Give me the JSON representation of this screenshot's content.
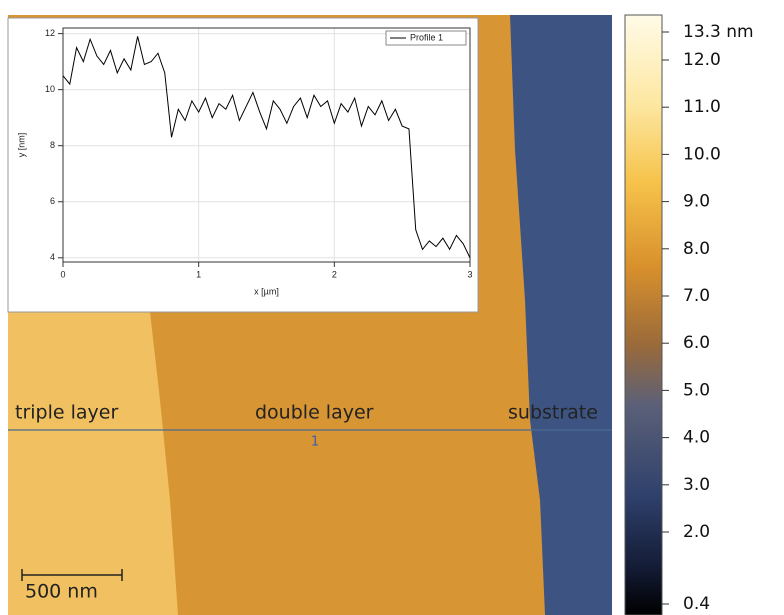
{
  "image": {
    "labels": [
      "triple layer",
      "double layer",
      "substrate"
    ],
    "profile_marker": "1",
    "scale_bar": "500 nm"
  },
  "colorbar": {
    "ticks": [
      {
        "value": 13.3,
        "label": "13.3 nm"
      },
      {
        "value": 12,
        "label": "12.0"
      },
      {
        "value": 11,
        "label": "11.0"
      },
      {
        "value": 10,
        "label": "10.0"
      },
      {
        "value": 9,
        "label": "9.0"
      },
      {
        "value": 8,
        "label": "8.0"
      },
      {
        "value": 7,
        "label": "7.0"
      },
      {
        "value": 6,
        "label": "6.0"
      },
      {
        "value": 5,
        "label": "5.0"
      },
      {
        "value": 4,
        "label": "4.0"
      },
      {
        "value": 3,
        "label": "3.0"
      },
      {
        "value": 2,
        "label": "2.0"
      },
      {
        "value": 0.4,
        "label": "0.4"
      }
    ]
  },
  "chart_data": {
    "type": "line",
    "xlabel": "x [µm]",
    "ylabel": "y [nm]",
    "grid": true,
    "xlim": [
      0,
      3
    ],
    "xticks": [
      0,
      1,
      2,
      3
    ],
    "ylim": [
      3.85,
      12.2
    ],
    "yticks": [
      4,
      6,
      8,
      10,
      12
    ],
    "legend": "top-right",
    "x": [
      0,
      0.05,
      0.1,
      0.15,
      0.2,
      0.25,
      0.3,
      0.35,
      0.4,
      0.45,
      0.5,
      0.55,
      0.6,
      0.65,
      0.7,
      0.75,
      0.8,
      0.85,
      0.9,
      0.95,
      1.0,
      1.05,
      1.1,
      1.15,
      1.2,
      1.25,
      1.3,
      1.35,
      1.4,
      1.45,
      1.5,
      1.55,
      1.6,
      1.65,
      1.7,
      1.75,
      1.8,
      1.85,
      1.9,
      1.95,
      2.0,
      2.05,
      2.1,
      2.15,
      2.2,
      2.25,
      2.3,
      2.35,
      2.4,
      2.45,
      2.5,
      2.55,
      2.6,
      2.65,
      2.7,
      2.75,
      2.8,
      2.85,
      2.9,
      2.95,
      3.0
    ],
    "series": [
      {
        "name": "Profile 1",
        "color": "#000000",
        "values": [
          10.5,
          10.2,
          11.5,
          11.0,
          11.8,
          11.2,
          10.9,
          11.4,
          10.6,
          11.1,
          10.7,
          11.9,
          10.9,
          11.0,
          11.3,
          10.6,
          8.3,
          9.3,
          8.9,
          9.6,
          9.2,
          9.7,
          9.0,
          9.5,
          9.3,
          9.8,
          8.9,
          9.4,
          9.9,
          9.2,
          8.6,
          9.6,
          9.3,
          8.8,
          9.4,
          9.7,
          9.0,
          9.8,
          9.4,
          9.6,
          8.8,
          9.5,
          9.2,
          9.7,
          8.7,
          9.4,
          9.1,
          9.6,
          8.9,
          9.3,
          8.7,
          8.6,
          5.0,
          4.3,
          4.6,
          4.4,
          4.7,
          4.3,
          4.8,
          4.5,
          4.0
        ]
      }
    ]
  }
}
